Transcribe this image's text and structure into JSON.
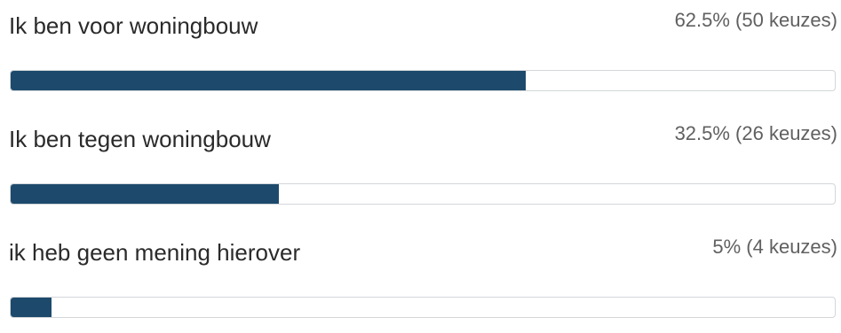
{
  "poll": {
    "options": [
      {
        "label": "Ik ben voor woningbouw",
        "result": "62.5% (50 keuzes)",
        "percent": 62.5
      },
      {
        "label": "Ik ben tegen woningbouw",
        "result": "32.5% (26 keuzes)",
        "percent": 32.5
      },
      {
        "label": "ik heb geen mening hierover",
        "result": "5% (4 keuzes)",
        "percent": 5
      }
    ],
    "colors": {
      "bar_fill": "#1d4a6c",
      "bar_track_border": "#d3d6da",
      "label_text": "#2a2a2a",
      "result_text": "#606060"
    }
  }
}
